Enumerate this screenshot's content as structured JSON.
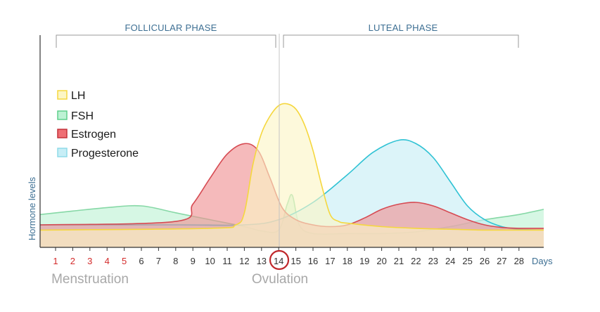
{
  "chart_data": {
    "type": "area",
    "title": "",
    "xlabel": "Days",
    "ylabel": "Hormone levels",
    "xlim": [
      0.5,
      29
    ],
    "ylim": [
      0,
      10
    ],
    "x_ticks": [
      1,
      2,
      3,
      4,
      5,
      6,
      7,
      8,
      9,
      10,
      11,
      12,
      13,
      14,
      15,
      16,
      17,
      18,
      19,
      20,
      21,
      22,
      23,
      24,
      25,
      26,
      27,
      28
    ],
    "menstruation_days": [
      1,
      2,
      3,
      4,
      5
    ],
    "ovulation_day": 14,
    "phases": [
      {
        "label": "FOLLICULAR PHASE",
        "start": 1,
        "end": 13.8
      },
      {
        "label": "LUTEAL PHASE",
        "start": 14.2,
        "end": 28
      }
    ],
    "annotations": [
      {
        "text": "Menstruation",
        "x": 4.5
      },
      {
        "text": "Ovulation",
        "x": 14
      }
    ],
    "series": [
      {
        "name": "FSH",
        "fill": "#bdf2d4",
        "stroke": "#86d8a6",
        "points": [
          [
            0,
            1.9
          ],
          [
            2,
            2.1
          ],
          [
            4,
            2.3
          ],
          [
            6,
            2.4
          ],
          [
            8,
            2.0
          ],
          [
            10,
            1.6
          ],
          [
            12,
            1.2
          ],
          [
            13,
            0.95
          ],
          [
            14,
            1.0
          ],
          [
            14.5,
            2.5
          ],
          [
            14.8,
            3.0
          ],
          [
            15.2,
            1.3
          ],
          [
            16,
            0.8
          ],
          [
            18,
            0.8
          ],
          [
            20,
            0.8
          ],
          [
            22,
            0.9
          ],
          [
            24,
            1.2
          ],
          [
            26,
            1.6
          ],
          [
            28,
            1.9
          ],
          [
            30,
            2.2
          ]
        ]
      },
      {
        "name": "Progesterone",
        "fill": "#c7eef6",
        "stroke": "#2fc2d4",
        "points": [
          [
            0,
            1.3
          ],
          [
            8,
            1.3
          ],
          [
            12,
            1.3
          ],
          [
            14,
            1.6
          ],
          [
            16,
            2.6
          ],
          [
            18,
            4.2
          ],
          [
            19.5,
            5.5
          ],
          [
            21,
            6.2
          ],
          [
            22,
            6.0
          ],
          [
            23,
            5.2
          ],
          [
            24,
            3.8
          ],
          [
            25,
            2.4
          ],
          [
            26,
            1.6
          ],
          [
            27,
            1.2
          ],
          [
            28,
            1.05
          ],
          [
            30,
            1.0
          ]
        ]
      },
      {
        "name": "Estrogen",
        "fill": "#ef8f92",
        "stroke": "#d64a52",
        "points": [
          [
            0,
            1.3
          ],
          [
            8,
            1.5
          ],
          [
            9,
            2.5
          ],
          [
            10,
            4.0
          ],
          [
            11,
            5.4
          ],
          [
            12,
            6.0
          ],
          [
            12.8,
            5.6
          ],
          [
            13.5,
            4.0
          ],
          [
            14.2,
            2.3
          ],
          [
            15,
            1.6
          ],
          [
            16,
            1.3
          ],
          [
            17,
            1.2
          ],
          [
            18,
            1.3
          ],
          [
            19,
            1.7
          ],
          [
            20,
            2.2
          ],
          [
            21,
            2.5
          ],
          [
            22,
            2.6
          ],
          [
            23,
            2.4
          ],
          [
            24,
            2.0
          ],
          [
            25,
            1.6
          ],
          [
            26,
            1.3
          ],
          [
            27,
            1.15
          ],
          [
            28,
            1.1
          ],
          [
            30,
            1.1
          ]
        ]
      },
      {
        "name": "LH",
        "fill": "#fcf6c5",
        "stroke": "#f5d73e",
        "points": [
          [
            0,
            1.0
          ],
          [
            10,
            1.1
          ],
          [
            11.5,
            1.3
          ],
          [
            12,
            2.0
          ],
          [
            12.5,
            4.8
          ],
          [
            13,
            6.6
          ],
          [
            13.5,
            7.6
          ],
          [
            14,
            8.2
          ],
          [
            14.5,
            8.3
          ],
          [
            15,
            8.0
          ],
          [
            15.5,
            7.1
          ],
          [
            16,
            5.6
          ],
          [
            16.5,
            3.6
          ],
          [
            17,
            1.9
          ],
          [
            17.5,
            1.5
          ],
          [
            18,
            1.4
          ],
          [
            20,
            1.2
          ],
          [
            22,
            1.1
          ],
          [
            24,
            1.05
          ],
          [
            26,
            1.0
          ],
          [
            28,
            1.0
          ],
          [
            30,
            1.0
          ]
        ]
      }
    ],
    "legend": [
      "LH",
      "FSH",
      "Estrogen",
      "Progesterone"
    ],
    "legend_position": "top-left",
    "grid": false
  }
}
